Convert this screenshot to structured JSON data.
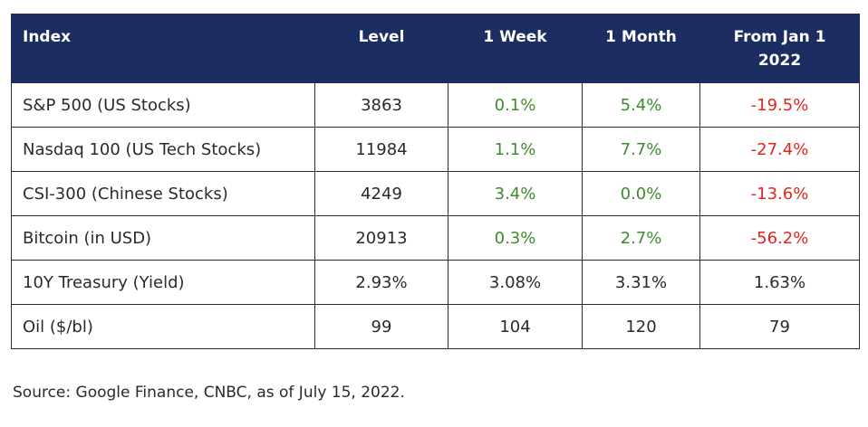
{
  "table": {
    "headers": [
      "Index",
      "Level",
      "1 Week",
      "1 Month",
      "From Jan 1 2022"
    ],
    "header_lines": {
      "from_jan_line1": "From Jan 1",
      "from_jan_line2": "2022"
    },
    "rows": [
      {
        "name": "S&P 500 (US Stocks)",
        "level": "3863",
        "week": "0.1%",
        "month": "5.4%",
        "ytd": "-19.5%"
      },
      {
        "name": "Nasdaq 100 (US Tech Stocks)",
        "level": "11984",
        "week": "1.1%",
        "month": "7.7%",
        "ytd": "-27.4%"
      },
      {
        "name": "CSI-300 (Chinese Stocks)",
        "level": "4249",
        "week": "3.4%",
        "month": "0.0%",
        "ytd": "-13.6%"
      },
      {
        "name": "Bitcoin (in USD)",
        "level": "20913",
        "week": "0.3%",
        "month": "2.7%",
        "ytd": "-56.2%"
      },
      {
        "name": "10Y Treasury (Yield)",
        "level": "2.93%",
        "week": "3.08%",
        "month": "3.31%",
        "ytd": "1.63%"
      },
      {
        "name": "Oil ($/bl)",
        "level": "99",
        "week": "104",
        "month": "120",
        "ytd": "79"
      }
    ]
  },
  "source_note": "Source: Google Finance, CNBC, as of July 15, 2022.",
  "colors": {
    "header_bg": "#1b2d61",
    "positive": "#3f8a2e",
    "negative": "#e0261c",
    "text": "#2a2a2a"
  }
}
